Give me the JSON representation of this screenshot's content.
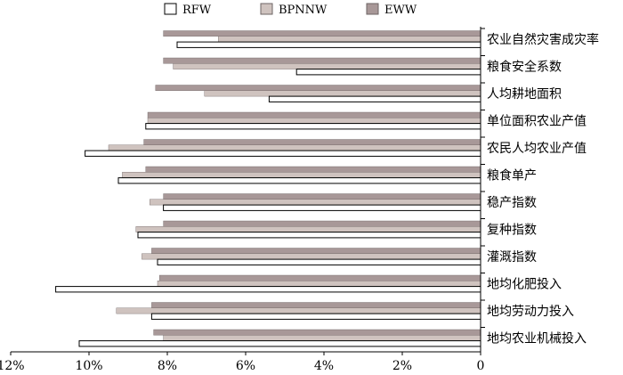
{
  "chart_data": {
    "type": "bar",
    "orientation": "horizontal",
    "x_direction": "reversed",
    "xlim": [
      0,
      12
    ],
    "xticks": [
      "12%",
      "10%",
      "8%",
      "6%",
      "4%",
      "2%",
      "0"
    ],
    "xtick_values": [
      12,
      10,
      8,
      6,
      4,
      2,
      0
    ],
    "categories": [
      "农业自然灾害成灾率",
      "粮食安全系数",
      "人均耕地面积",
      "单位面积农业产值",
      "农民人均农业产值",
      "粮食单产",
      "稳产指数",
      "复种指数",
      "灌溉指数",
      "地均化肥投入",
      "地均劳动力投入",
      "地均农业机械投入"
    ],
    "series": [
      {
        "name": "EWW",
        "color": "#a89898",
        "values": [
          8.1,
          8.1,
          8.3,
          8.5,
          8.6,
          8.55,
          8.1,
          8.1,
          8.4,
          8.2,
          8.4,
          8.35
        ]
      },
      {
        "name": "BPNNW",
        "color": "#cfc3bf",
        "values": [
          6.7,
          7.85,
          7.05,
          8.5,
          9.5,
          9.15,
          8.45,
          8.8,
          8.65,
          8.25,
          9.3,
          8.1
        ]
      },
      {
        "name": "RFW",
        "color": "#ffffff",
        "values": [
          7.75,
          4.7,
          5.4,
          8.55,
          10.1,
          9.25,
          8.1,
          8.75,
          8.25,
          10.85,
          8.4,
          10.25
        ]
      }
    ],
    "legend": {
      "placement": "top"
    }
  }
}
